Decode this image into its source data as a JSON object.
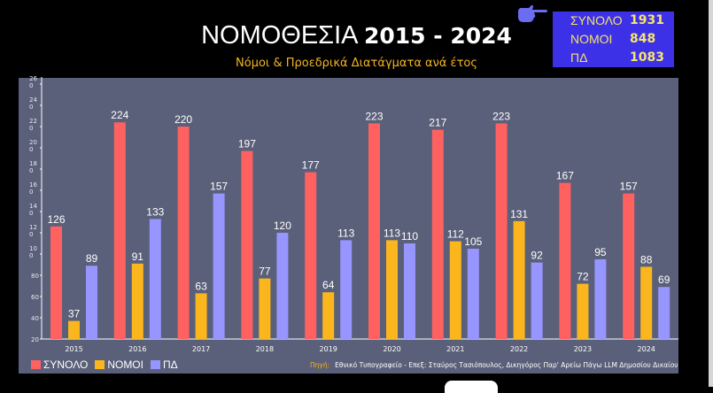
{
  "header": {
    "title_main": "ΝΟΜΟΘΕΣΙΑ",
    "title_years": "2015 - 2024",
    "subtitle": "Νόμοι & Προεδρικά Διατάγματα ανά έτος"
  },
  "stats": {
    "icon": "pointing-hand-icon",
    "rows": [
      {
        "label": "ΣΥΝΟΛΟ",
        "value": "1931"
      },
      {
        "label": "ΝΟΜΟΙ",
        "value": "848"
      },
      {
        "label": "ΠΔ",
        "value": "1083"
      }
    ]
  },
  "source": {
    "label": "Πηγή:",
    "text": "Εθνικό Τυπογραφείο - Επεξ: Σταύρος Τασιόπουλος, Δικηγόρος Παρ' Αρείω Πάγω LLM Δημοσίου Δικαίου"
  },
  "colors": {
    "synolo": "#ff6161",
    "nomoi": "#fcb61d",
    "pd": "#9795ff",
    "panel": "#5a6079",
    "stats_bg": "#3c31e6"
  },
  "chart_data": {
    "type": "bar",
    "title": "ΝΟΜΟΘΕΣΙΑ 2015 - 2024",
    "subtitle": "Νόμοι & Προεδρικά Διατάγματα ανά έτος",
    "categories": [
      "2015",
      "2016",
      "2017",
      "2018",
      "2019",
      "2020",
      "2021",
      "2022",
      "2023",
      "2024"
    ],
    "series": [
      {
        "name": "ΣΥΝΟΛΟ",
        "color": "#ff6161",
        "values": [
          126,
          224,
          220,
          197,
          177,
          223,
          217,
          223,
          167,
          157
        ]
      },
      {
        "name": "ΝΟΜΟΙ",
        "color": "#fcb61d",
        "values": [
          37,
          91,
          63,
          77,
          64,
          113,
          112,
          131,
          72,
          88
        ]
      },
      {
        "name": "ΠΔ",
        "color": "#9795ff",
        "values": [
          89,
          133,
          157,
          120,
          113,
          110,
          105,
          92,
          95,
          69
        ]
      }
    ],
    "yticks": [
      {
        "value": 20,
        "label": "20"
      },
      {
        "value": 40,
        "label": "40"
      },
      {
        "value": 60,
        "label": "60"
      },
      {
        "value": 80,
        "label": "80"
      },
      {
        "value": 100,
        "label": "10\n0"
      },
      {
        "value": 120,
        "label": "12\n0"
      },
      {
        "value": 140,
        "label": "14\n0"
      },
      {
        "value": 160,
        "label": "16\n0"
      },
      {
        "value": 180,
        "label": "18\n0"
      },
      {
        "value": 200,
        "label": "20\n0"
      },
      {
        "value": 220,
        "label": "22\n0"
      },
      {
        "value": 240,
        "label": "24\n0"
      },
      {
        "value": 260,
        "label": "26\n0"
      }
    ],
    "ylim": [
      20,
      260
    ],
    "xlabel": "",
    "ylabel": "",
    "grid": false,
    "legend": "bottom-left"
  }
}
